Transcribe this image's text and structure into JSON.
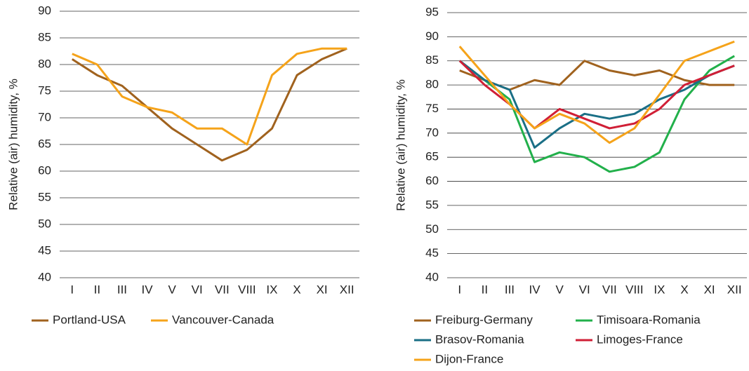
{
  "chart_data": [
    {
      "type": "line",
      "y_label": "Relative (air) humidity, %",
      "categories": [
        "I",
        "II",
        "III",
        "IV",
        "V",
        "VI",
        "VII",
        "VIII",
        "IX",
        "X",
        "XI",
        "XII"
      ],
      "series": [
        {
          "name": "Portland-USA",
          "color": "#a0621e",
          "values": [
            81,
            78,
            76,
            72,
            68,
            65,
            62,
            64,
            68,
            78,
            81,
            83
          ]
        },
        {
          "name": "Vancouver-Canada",
          "color": "#f5a31a",
          "values": [
            82,
            80,
            74,
            72,
            71,
            68,
            68,
            65,
            78,
            82,
            83,
            83
          ]
        }
      ],
      "ylim": [
        40,
        90
      ],
      "yticks": [
        40,
        45,
        50,
        55,
        60,
        65,
        70,
        75,
        80,
        85,
        90
      ],
      "grid": true,
      "legend": "bottom"
    },
    {
      "type": "line",
      "y_label": "Relative (air) humidity, %",
      "categories": [
        "I",
        "II",
        "III",
        "IV",
        "V",
        "VI",
        "VII",
        "VIII",
        "IX",
        "X",
        "XI",
        "XII"
      ],
      "series": [
        {
          "name": "Freiburg-Germany",
          "color": "#a0621e",
          "values": [
            83,
            81,
            79,
            81,
            80,
            85,
            83,
            82,
            83,
            81,
            80,
            80
          ]
        },
        {
          "name": "Timisoara-Romania",
          "color": "#22b04b",
          "values": [
            85,
            81,
            77,
            64,
            66,
            65,
            62,
            63,
            66,
            77,
            83,
            86
          ]
        },
        {
          "name": "Brasov-Romania",
          "color": "#1a6f86",
          "values": [
            85,
            81,
            79,
            67,
            71,
            74,
            73,
            74,
            77,
            79,
            82,
            84
          ]
        },
        {
          "name": "Limoges-France",
          "color": "#d01f36",
          "values": [
            85,
            80,
            76,
            71,
            75,
            73,
            71,
            72,
            75,
            80,
            82,
            84
          ]
        },
        {
          "name": "Dijon-France",
          "color": "#f5a31a",
          "values": [
            88,
            82,
            76,
            71,
            74,
            72,
            68,
            71,
            78,
            85,
            87,
            89
          ]
        }
      ],
      "ylim": [
        40,
        95
      ],
      "yticks": [
        40,
        45,
        50,
        55,
        60,
        65,
        70,
        75,
        80,
        85,
        90,
        95
      ],
      "grid": true,
      "legend": "bottom"
    }
  ]
}
